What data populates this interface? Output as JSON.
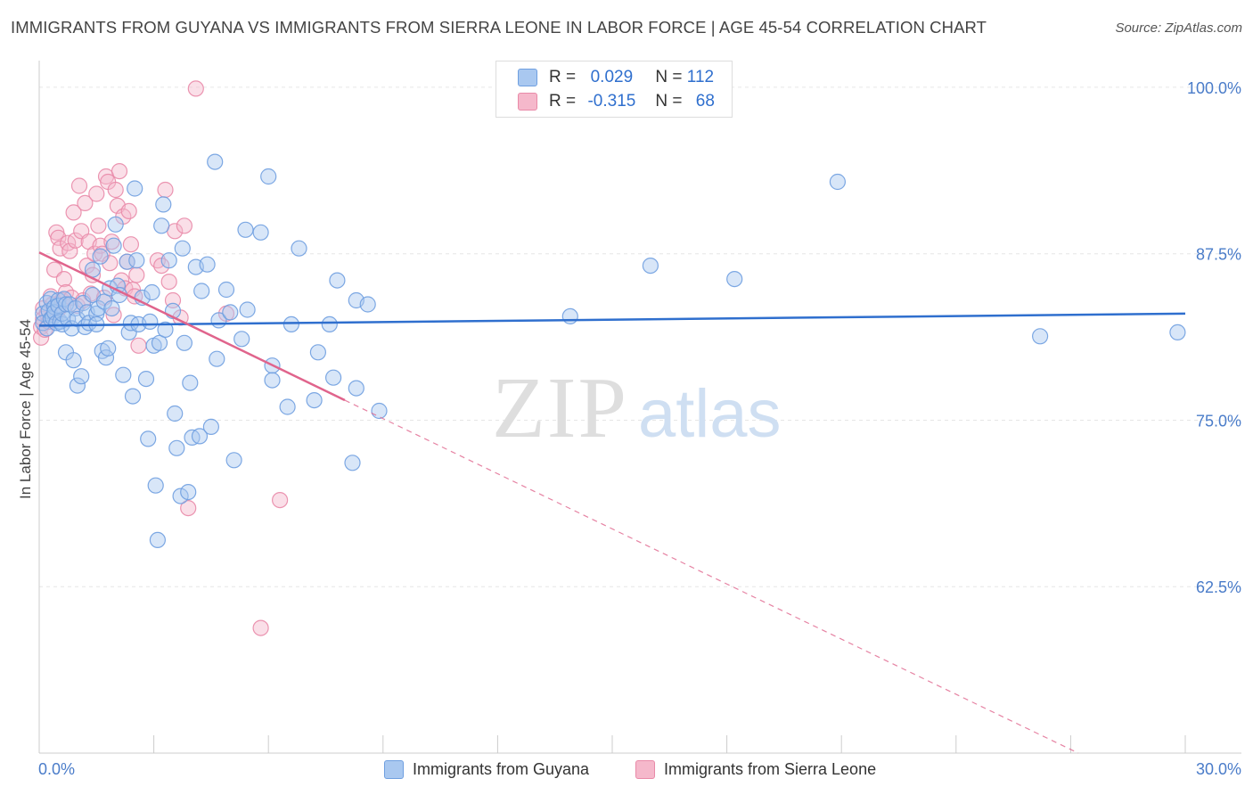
{
  "title": "IMMIGRANTS FROM GUYANA VS IMMIGRANTS FROM SIERRA LEONE IN LABOR FORCE | AGE 45-54 CORRELATION CHART",
  "source": "Source: ZipAtlas.com",
  "watermark": {
    "zip": "ZIP",
    "atlas": "atlas"
  },
  "legend": {
    "rows": [
      {
        "r_label": "R =",
        "r_value": "0.029",
        "n_label": "N =",
        "n_value": "112",
        "color": "#a9c8f0"
      },
      {
        "r_label": "R =",
        "r_value": "-0.315",
        "n_label": "N =",
        "n_value": "68",
        "color": "#f5b8cb"
      }
    ]
  },
  "colors": {
    "blue_fill": "#a9c8f0",
    "blue_stroke": "#6f9fe0",
    "blue_line": "#2f6fce",
    "pink_fill": "#f5b8cb",
    "pink_stroke": "#e98aa8",
    "pink_line": "#e0648c",
    "grid": "#e6e6e6",
    "tick_text": "#4a7cc9"
  },
  "chart_data": {
    "type": "scatter",
    "title": "IMMIGRANTS FROM GUYANA VS IMMIGRANTS FROM SIERRA LEONE IN LABOR FORCE | AGE 45-54 CORRELATION CHART",
    "xlabel": "",
    "ylabel": "In Labor Force | Age 45-54",
    "xlim": [
      0,
      30
    ],
    "ylim": [
      50,
      101.2
    ],
    "x_tick_labels": [
      "0.0%",
      "30.0%"
    ],
    "y_ticks": [
      62.5,
      75.0,
      87.5,
      100.0
    ],
    "y_tick_labels": [
      "62.5%",
      "75.0%",
      "87.5%",
      "100.0%"
    ],
    "grid": true,
    "series": [
      {
        "name": "Immigrants from Guyana",
        "color": "#a9c8f0",
        "R": 0.029,
        "N": 112,
        "trend": {
          "x0": 0,
          "y0": 82.1,
          "x1": 30,
          "y1": 83.0,
          "dashed_after": null
        },
        "points": [
          [
            0.1,
            83.0
          ],
          [
            0.1,
            82.3
          ],
          [
            0.2,
            83.8
          ],
          [
            0.2,
            81.9
          ],
          [
            0.25,
            83.2
          ],
          [
            0.3,
            82.6
          ],
          [
            0.3,
            84.1
          ],
          [
            0.35,
            82.7
          ],
          [
            0.4,
            83.5
          ],
          [
            0.4,
            83.1
          ],
          [
            0.45,
            82.3
          ],
          [
            0.5,
            84.0
          ],
          [
            0.5,
            83.6
          ],
          [
            0.55,
            82.4
          ],
          [
            0.6,
            82.2
          ],
          [
            0.6,
            83.0
          ],
          [
            0.65,
            84.1
          ],
          [
            0.7,
            83.7
          ],
          [
            0.7,
            80.1
          ],
          [
            0.75,
            82.6
          ],
          [
            0.8,
            83.7
          ],
          [
            0.85,
            81.9
          ],
          [
            0.9,
            79.5
          ],
          [
            0.95,
            83.4
          ],
          [
            1.0,
            82.6
          ],
          [
            1.0,
            77.6
          ],
          [
            1.1,
            78.3
          ],
          [
            1.15,
            83.8
          ],
          [
            1.2,
            82.0
          ],
          [
            1.25,
            83.1
          ],
          [
            1.3,
            82.3
          ],
          [
            1.4,
            84.4
          ],
          [
            1.4,
            86.3
          ],
          [
            1.5,
            83.0
          ],
          [
            1.5,
            82.2
          ],
          [
            1.55,
            83.4
          ],
          [
            1.6,
            87.3
          ],
          [
            1.65,
            80.2
          ],
          [
            1.7,
            83.9
          ],
          [
            1.75,
            79.7
          ],
          [
            1.8,
            80.4
          ],
          [
            1.85,
            84.9
          ],
          [
            1.9,
            83.4
          ],
          [
            1.95,
            88.1
          ],
          [
            2.0,
            89.7
          ],
          [
            2.05,
            85.1
          ],
          [
            2.1,
            84.4
          ],
          [
            2.2,
            78.4
          ],
          [
            2.3,
            86.9
          ],
          [
            2.35,
            81.6
          ],
          [
            2.4,
            82.3
          ],
          [
            2.45,
            76.8
          ],
          [
            2.5,
            92.4
          ],
          [
            2.55,
            87.0
          ],
          [
            2.6,
            82.2
          ],
          [
            2.7,
            84.2
          ],
          [
            2.8,
            78.1
          ],
          [
            2.85,
            73.6
          ],
          [
            2.9,
            82.4
          ],
          [
            2.95,
            84.6
          ],
          [
            3.0,
            80.6
          ],
          [
            3.05,
            70.1
          ],
          [
            3.1,
            66.0
          ],
          [
            3.15,
            80.8
          ],
          [
            3.2,
            89.6
          ],
          [
            3.25,
            91.2
          ],
          [
            3.3,
            81.8
          ],
          [
            3.4,
            87.0
          ],
          [
            3.5,
            83.2
          ],
          [
            3.55,
            75.5
          ],
          [
            3.6,
            72.9
          ],
          [
            3.7,
            69.3
          ],
          [
            3.75,
            87.9
          ],
          [
            3.8,
            80.8
          ],
          [
            3.9,
            69.6
          ],
          [
            3.95,
            77.8
          ],
          [
            4.0,
            73.7
          ],
          [
            4.1,
            86.5
          ],
          [
            4.2,
            73.8
          ],
          [
            4.25,
            84.7
          ],
          [
            4.4,
            86.7
          ],
          [
            4.5,
            74.5
          ],
          [
            4.6,
            94.4
          ],
          [
            4.65,
            79.6
          ],
          [
            4.7,
            82.5
          ],
          [
            4.9,
            84.8
          ],
          [
            5.0,
            83.1
          ],
          [
            5.1,
            72.0
          ],
          [
            5.3,
            81.1
          ],
          [
            5.4,
            89.3
          ],
          [
            5.45,
            83.3
          ],
          [
            5.8,
            89.1
          ],
          [
            6.0,
            93.3
          ],
          [
            6.1,
            79.1
          ],
          [
            6.1,
            78.0
          ],
          [
            6.5,
            76.0
          ],
          [
            6.6,
            82.2
          ],
          [
            6.8,
            87.9
          ],
          [
            7.2,
            76.5
          ],
          [
            7.3,
            80.1
          ],
          [
            7.6,
            82.2
          ],
          [
            7.7,
            78.2
          ],
          [
            7.8,
            85.5
          ],
          [
            8.2,
            71.8
          ],
          [
            8.3,
            84.0
          ],
          [
            8.3,
            77.4
          ],
          [
            8.6,
            83.7
          ],
          [
            8.9,
            75.7
          ],
          [
            13.9,
            82.8
          ],
          [
            16.0,
            86.6
          ],
          [
            18.2,
            85.6
          ],
          [
            20.9,
            92.9
          ],
          [
            26.2,
            81.3
          ],
          [
            29.8,
            81.6
          ]
        ]
      },
      {
        "name": "Immigrants from Sierra Leone",
        "color": "#f5b8cb",
        "R": -0.315,
        "N": 68,
        "trend": {
          "x0": 0,
          "y0": 87.6,
          "x1": 8.0,
          "y1": 76.5,
          "dashed_to_x": 27.2,
          "dashed_to_y": 50.0
        },
        "points": [
          [
            0.05,
            82.0
          ],
          [
            0.05,
            81.2
          ],
          [
            0.1,
            83.4
          ],
          [
            0.1,
            82.6
          ],
          [
            0.15,
            81.8
          ],
          [
            0.2,
            83.0
          ],
          [
            0.25,
            82.4
          ],
          [
            0.3,
            84.3
          ],
          [
            0.35,
            83.7
          ],
          [
            0.4,
            86.3
          ],
          [
            0.45,
            89.1
          ],
          [
            0.5,
            83.3
          ],
          [
            0.5,
            88.7
          ],
          [
            0.55,
            87.9
          ],
          [
            0.6,
            84.0
          ],
          [
            0.65,
            85.6
          ],
          [
            0.7,
            84.6
          ],
          [
            0.75,
            88.3
          ],
          [
            0.8,
            87.7
          ],
          [
            0.85,
            84.2
          ],
          [
            0.9,
            90.6
          ],
          [
            0.95,
            88.5
          ],
          [
            1.0,
            83.6
          ],
          [
            1.05,
            92.6
          ],
          [
            1.1,
            89.2
          ],
          [
            1.15,
            84.0
          ],
          [
            1.2,
            91.3
          ],
          [
            1.25,
            86.6
          ],
          [
            1.3,
            88.4
          ],
          [
            1.35,
            84.5
          ],
          [
            1.4,
            85.9
          ],
          [
            1.45,
            87.5
          ],
          [
            1.5,
            92.0
          ],
          [
            1.55,
            89.6
          ],
          [
            1.6,
            88.1
          ],
          [
            1.65,
            87.5
          ],
          [
            1.7,
            84.2
          ],
          [
            1.75,
            93.3
          ],
          [
            1.8,
            92.9
          ],
          [
            1.85,
            86.8
          ],
          [
            1.9,
            88.4
          ],
          [
            1.95,
            82.9
          ],
          [
            2.0,
            92.3
          ],
          [
            2.05,
            91.1
          ],
          [
            2.1,
            93.7
          ],
          [
            2.15,
            85.5
          ],
          [
            2.2,
            90.3
          ],
          [
            2.25,
            84.9
          ],
          [
            2.3,
            86.9
          ],
          [
            2.35,
            90.7
          ],
          [
            2.4,
            88.2
          ],
          [
            2.45,
            84.8
          ],
          [
            2.5,
            84.3
          ],
          [
            2.55,
            85.9
          ],
          [
            2.6,
            80.6
          ],
          [
            3.1,
            87.0
          ],
          [
            3.2,
            86.6
          ],
          [
            3.3,
            92.3
          ],
          [
            3.4,
            85.4
          ],
          [
            3.5,
            84.0
          ],
          [
            3.55,
            89.2
          ],
          [
            3.7,
            82.7
          ],
          [
            3.8,
            89.6
          ],
          [
            3.9,
            68.4
          ],
          [
            4.1,
            99.9
          ],
          [
            4.9,
            83.0
          ],
          [
            5.8,
            59.4
          ],
          [
            6.3,
            69.0
          ]
        ]
      }
    ]
  },
  "bottom_legend": {
    "items": [
      {
        "label": "Immigrants from Guyana",
        "color": "#a9c8f0"
      },
      {
        "label": "Immigrants from Sierra Leone",
        "color": "#f5b8cb"
      }
    ]
  }
}
